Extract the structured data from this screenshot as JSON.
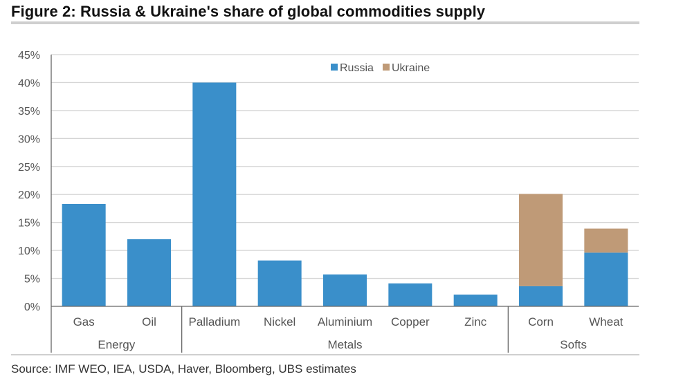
{
  "title": "Figure 2: Russia & Ukraine's share of global commodities supply",
  "source": "Source: IMF WEO, IEA, USDA, Haver, Bloomberg, UBS estimates",
  "colors": {
    "russia": "#3a8fca",
    "ukraine": "#bf9a77",
    "grid": "#d4d4d4",
    "axis": "#666666"
  },
  "chart_data": {
    "type": "bar",
    "stacked": true,
    "categories": [
      "Gas",
      "Oil",
      "Palladium",
      "Nickel",
      "Aluminium",
      "Copper",
      "Zinc",
      "Corn",
      "Wheat"
    ],
    "groups": [
      {
        "label": "Energy",
        "categories": [
          "Gas",
          "Oil"
        ]
      },
      {
        "label": "Metals",
        "categories": [
          "Palladium",
          "Nickel",
          "Aluminium",
          "Copper",
          "Zinc"
        ]
      },
      {
        "label": "Softs",
        "categories": [
          "Corn",
          "Wheat"
        ]
      }
    ],
    "series": [
      {
        "name": "Russia",
        "values": [
          18.3,
          12.0,
          40.0,
          8.2,
          5.7,
          4.1,
          2.1,
          3.6,
          9.6
        ]
      },
      {
        "name": "Ukraine",
        "values": [
          0,
          0,
          0,
          0,
          0,
          0,
          0,
          16.5,
          4.3
        ]
      }
    ],
    "ylim": [
      0,
      45
    ],
    "yticks": [
      0,
      5,
      10,
      15,
      20,
      25,
      30,
      35,
      40,
      45
    ],
    "ytick_labels": [
      "0%",
      "5%",
      "10%",
      "15%",
      "20%",
      "25%",
      "30%",
      "35%",
      "40%",
      "45%"
    ],
    "legend": {
      "position": "top-center",
      "entries": [
        "Russia",
        "Ukraine"
      ]
    },
    "grid": true,
    "xlabel": "",
    "ylabel": ""
  }
}
